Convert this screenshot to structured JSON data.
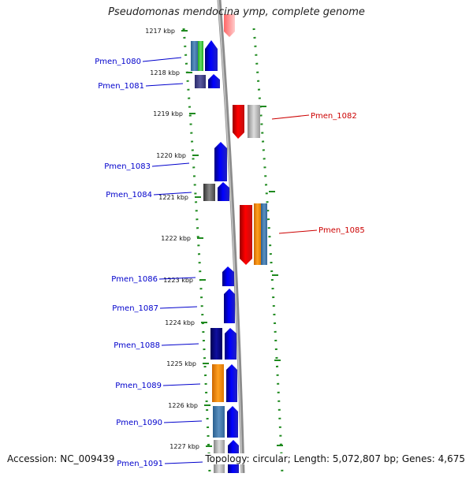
{
  "title": "Pseudomonas mendocina ymp, complete genome",
  "footer": {
    "accession": "Accession: NC_009439",
    "topology": "Topology: circular; Length: 5,072,807 bp; Genes: 4,675"
  },
  "scale_labels": [
    "1217 kbp",
    "1218 kbp",
    "1219 kbp",
    "1220 kbp",
    "1221 kbp",
    "1222 kbp",
    "1223 kbp",
    "1224 kbp",
    "1225 kbp",
    "1226 kbp",
    "1227 kbp"
  ],
  "genes": [
    {
      "name": "Pmen_1080",
      "strand": "left",
      "color": "#1a1acc"
    },
    {
      "name": "Pmen_1081",
      "strand": "left",
      "color": "#1a1acc"
    },
    {
      "name": "Pmen_1082",
      "strand": "right",
      "color": "#cc0000"
    },
    {
      "name": "Pmen_1083",
      "strand": "left",
      "color": "#1a1acc"
    },
    {
      "name": "Pmen_1084",
      "strand": "left",
      "color": "#1a1acc"
    },
    {
      "name": "Pmen_1085",
      "strand": "right",
      "color": "#cc0000"
    },
    {
      "name": "Pmen_1086",
      "strand": "left",
      "color": "#1a1acc"
    },
    {
      "name": "Pmen_1087",
      "strand": "left",
      "color": "#1a1acc"
    },
    {
      "name": "Pmen_1088",
      "strand": "left",
      "color": "#1a1acc"
    },
    {
      "name": "Pmen_1089",
      "strand": "left",
      "color": "#1a1acc"
    },
    {
      "name": "Pmen_1090",
      "strand": "left",
      "color": "#1a1acc"
    },
    {
      "name": "Pmen_1091",
      "strand": "left",
      "color": "#1a1acc"
    }
  ],
  "colors": {
    "forward_gene": "#0000ee",
    "reverse_gene": "#ee0000",
    "dotted_track": "#1f8a1f",
    "backbone": "#909090"
  }
}
